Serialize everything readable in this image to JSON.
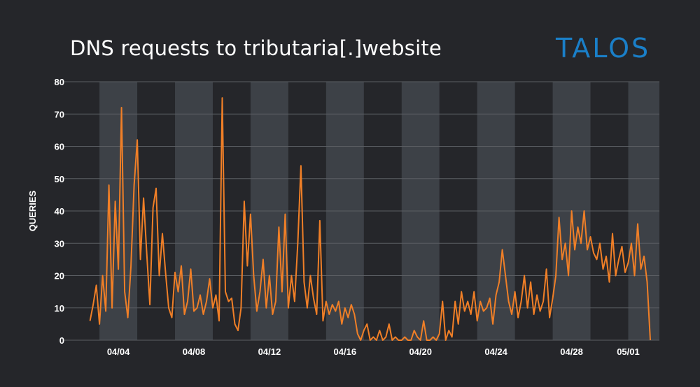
{
  "chart_data": {
    "type": "line",
    "title": "DNS requests to tributaria[.]website",
    "xlabel": "",
    "ylabel": "QUERIES",
    "ylim": [
      0,
      80
    ],
    "yticks": [
      "0",
      "10",
      "20",
      "30",
      "40",
      "50",
      "60",
      "70",
      "80"
    ],
    "xticks": [
      {
        "label": "04/04",
        "day": 4
      },
      {
        "label": "04/08",
        "day": 8
      },
      {
        "label": "04/12",
        "day": 12
      },
      {
        "label": "04/16",
        "day": 16
      },
      {
        "label": "04/20",
        "day": 20
      },
      {
        "label": "04/24",
        "day": 24
      },
      {
        "label": "04/28",
        "day": 28
      },
      {
        "label": "05/01",
        "day": 31
      }
    ],
    "xlim_days": [
      1.55,
      32.65
    ],
    "shaded_day_ranges": [
      [
        3,
        5
      ],
      [
        7,
        9
      ],
      [
        11,
        13
      ],
      [
        15,
        17
      ],
      [
        19,
        21
      ],
      [
        23,
        25
      ],
      [
        27,
        29
      ],
      [
        31,
        33
      ]
    ],
    "grid": true,
    "series": [
      {
        "name": "DNS requests",
        "color": "#f07f27",
        "start_day": 2.5,
        "interval_hours": 4,
        "values": [
          6,
          11,
          17,
          5,
          20,
          9,
          48,
          10,
          43,
          22,
          72,
          15,
          7,
          23,
          48,
          62,
          25,
          44,
          27,
          11,
          41,
          47,
          20,
          33,
          21,
          10,
          7,
          21,
          15,
          23,
          8,
          12,
          22,
          9,
          10,
          14,
          8,
          12,
          19,
          10,
          14,
          6,
          75,
          15,
          12,
          13,
          5,
          3,
          10,
          43,
          23,
          39,
          20,
          9,
          15,
          25,
          10,
          20,
          8,
          12,
          35,
          15,
          39,
          10,
          20,
          12,
          30,
          54,
          18,
          10,
          20,
          13,
          8,
          37,
          6,
          12,
          8,
          11,
          9,
          12,
          5,
          10,
          7,
          11,
          8,
          2,
          0,
          3,
          5,
          0,
          1,
          0,
          3,
          0,
          1,
          5,
          0,
          1,
          0,
          0,
          1,
          0,
          0,
          3,
          1,
          0,
          6,
          0,
          0,
          1,
          0,
          2,
          12,
          0,
          3,
          1,
          12,
          5,
          15,
          9,
          12,
          8,
          15,
          6,
          12,
          9,
          10,
          13,
          5,
          14,
          18,
          28,
          20,
          12,
          8,
          15,
          7,
          12,
          20,
          10,
          18,
          8,
          14,
          9,
          12,
          22,
          7,
          13,
          20,
          38,
          25,
          30,
          20,
          40,
          28,
          35,
          30,
          40,
          28,
          32,
          27,
          25,
          30,
          22,
          26,
          18,
          33,
          20,
          25,
          29,
          21,
          24,
          30,
          20,
          36,
          22,
          26,
          18,
          0
        ]
      }
    ]
  },
  "colors": {
    "background": "#25262a",
    "stripe": "#3d4147",
    "grid": "#5b5e63",
    "line": "#f07f27",
    "logo": "#1a7fc8"
  },
  "logo": "TALOS"
}
